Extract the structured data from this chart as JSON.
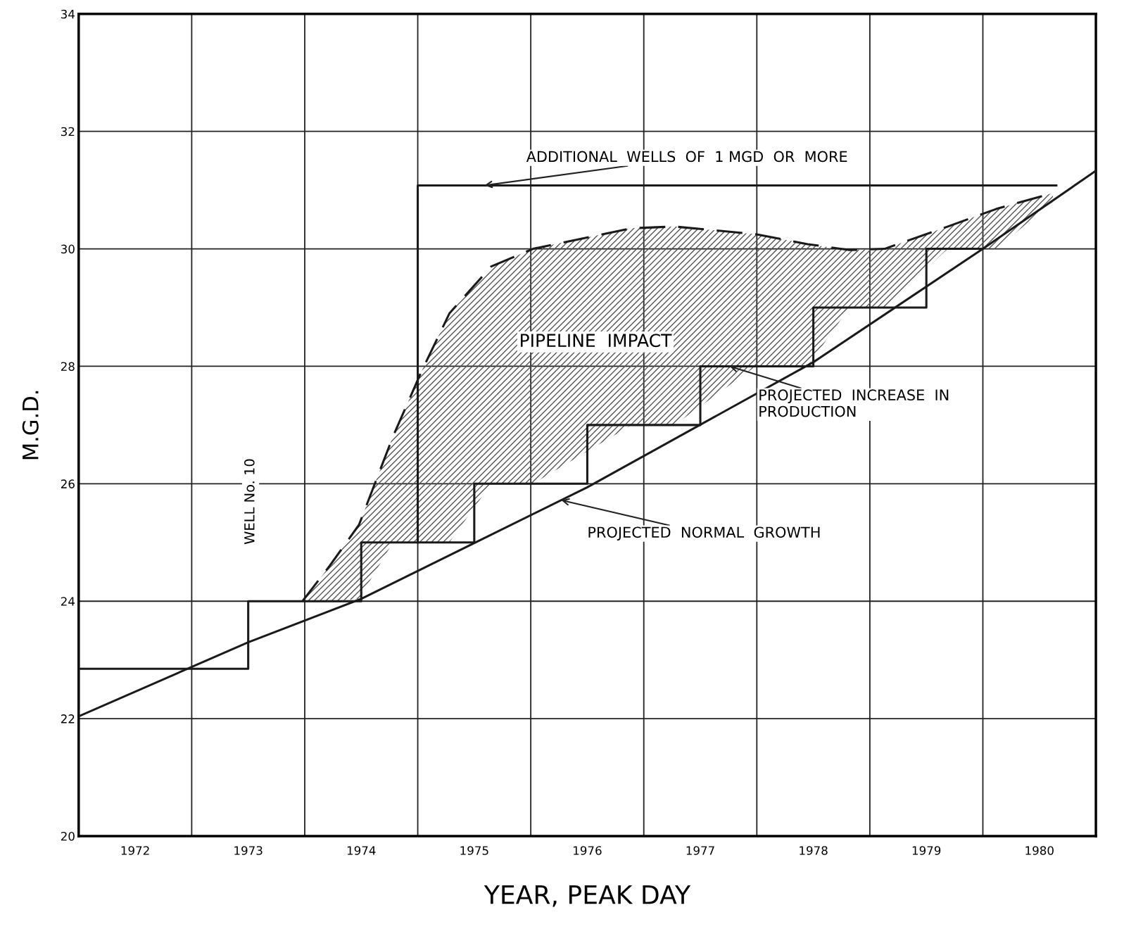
{
  "chart_data": {
    "type": "line",
    "xlabel": "YEAR, PEAK DAY",
    "ylabel": "M.G.D.",
    "xlim": [
      1971.5,
      1980.5
    ],
    "ylim": [
      20,
      34
    ],
    "xticks": [
      {
        "value": 1971.5,
        "label": null
      },
      1972,
      {
        "value": 1972.5,
        "label": null
      },
      1973,
      {
        "value": 1973.5,
        "label": null
      },
      1974,
      {
        "value": 1974.5,
        "label": null
      },
      1975,
      {
        "value": 1975.5,
        "label": null
      },
      1976,
      {
        "value": 1976.5,
        "label": null
      },
      1977,
      {
        "value": 1977.5,
        "label": null
      },
      1978,
      {
        "value": 1978.5,
        "label": null
      },
      1979,
      {
        "value": 1979.5,
        "label": null
      },
      1980,
      {
        "value": 1980.5,
        "label": null
      }
    ],
    "yticks": [
      20,
      22,
      24,
      26,
      28,
      30,
      32,
      34
    ],
    "grid": true,
    "series": [
      {
        "color": "#1a1a1a",
        "line_style": "solid",
        "x": [
          1971.5,
          1973.0,
          1974.0,
          1976.0,
          1978.0,
          1979.5,
          1980.5
        ],
        "values": [
          22.04,
          23.3,
          24.04,
          25.94,
          28.07,
          30.0,
          31.33
        ]
      },
      {
        "type": "step",
        "color": "#1a1a1a",
        "line_style": "solid",
        "x": [
          1971.5,
          1973,
          1974,
          1975,
          1976,
          1977,
          1978,
          1979,
          1979.5
        ],
        "values": [
          22.85,
          24,
          25,
          26,
          27,
          28,
          29,
          30,
          30
        ]
      },
      {
        "color": "#1a1a1a",
        "line_style": "dashed",
        "x": [
          1973.48,
          1973.72,
          1973.98,
          1974.28,
          1974.53,
          1974.78,
          1975.15,
          1975.52,
          1976.39,
          1976.77,
          1977.49,
          1977.95,
          1978.32,
          1978.63,
          1979.19,
          1979.62,
          1980.12
        ],
        "values": [
          24.0,
          24.6,
          25.3,
          26.8,
          27.9,
          28.9,
          29.7,
          30.0,
          30.35,
          30.38,
          30.25,
          30.08,
          29.98,
          30.0,
          30.38,
          30.68,
          30.95
        ],
        "lower": [
          24.0,
          24.0,
          24.04,
          25,
          25,
          25,
          26,
          26,
          27,
          27,
          28,
          28,
          29,
          29,
          30,
          30,
          30.8
        ],
        "upper": [
          24.0,
          24.6,
          25.3,
          26.8,
          27.9,
          28.9,
          29.7,
          30.0,
          30.35,
          30.38,
          30.25,
          30.08,
          29.98,
          30.0,
          30.38,
          30.68,
          30.95
        ]
      },
      {
        "color": "#1a1a1a",
        "line_style": "solid",
        "x": [
          1974.5,
          1974.5,
          1980.15
        ],
        "values": [
          25,
          31.08,
          31.08
        ]
      }
    ],
    "annotations": [
      {
        "text": "ADDITIONAL  WELLS  OF  1 MGD  OR  MORE",
        "x": 1975.09,
        "y": 31.08
      },
      "PIPELINE  IMPACT",
      {
        "text": "PROJECTED  INCREASE  IN\nPRODUCTION",
        "x": 1977.26,
        "y": 28.0
      },
      {
        "text": "PROJECTED  NORMAL  GROWTH",
        "x": 1975.77,
        "y": 25.72
      },
      "WELL No. 10"
    ]
  }
}
